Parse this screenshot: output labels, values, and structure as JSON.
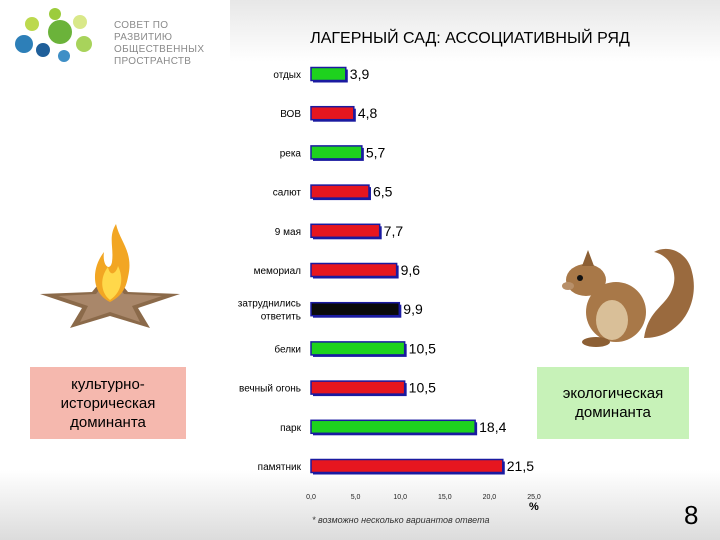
{
  "logo": {
    "lines": [
      "СОВЕТ ПО РАЗВИТИЮ",
      "ОБЩЕСТВЕННЫХ",
      "ПРОСТРАНСТВ"
    ]
  },
  "title": "ЛАГЕРНЫЙ САД: АССОЦИАТИВНЫЙ РЯД",
  "chart_data": {
    "type": "bar",
    "orientation": "horizontal",
    "categories": [
      "отдых",
      "ВОВ",
      "река",
      "салют",
      "9 мая",
      "мемориал",
      "затруднились ответить",
      "белки",
      "вечный огонь",
      "парк",
      "памятник"
    ],
    "category_lines": [
      [
        "отдых"
      ],
      [
        "ВОВ"
      ],
      [
        "река"
      ],
      [
        "салют"
      ],
      [
        "9 мая"
      ],
      [
        "мемориал"
      ],
      [
        "затруднились",
        "ответить"
      ],
      [
        "белки"
      ],
      [
        "вечный огонь"
      ],
      [
        "парк"
      ],
      [
        "памятник"
      ]
    ],
    "values": [
      3.9,
      4.8,
      5.7,
      6.5,
      7.7,
      9.6,
      9.9,
      10.5,
      10.5,
      18.4,
      21.5
    ],
    "value_labels": [
      "3,9",
      "4,8",
      "5,7",
      "6,5",
      "7,7",
      "9,6",
      "9,9",
      "10,5",
      "10,5",
      "18,4",
      "21,5"
    ],
    "colors": [
      "#1ed21e",
      "#e6161f",
      "#1ed21e",
      "#e6161f",
      "#e6161f",
      "#e6161f",
      "#0a0a0a",
      "#1ed21e",
      "#e6161f",
      "#1ed21e",
      "#e6161f"
    ],
    "xticks": [
      "0,0",
      "5,0",
      "10,0",
      "15,0",
      "20,0",
      "25,0"
    ],
    "xlim": [
      0,
      25
    ],
    "xlabel": "%",
    "grid": false
  },
  "footnote": "* возможно несколько вариантов ответа",
  "boxes": {
    "left": "культурно-историческая доминанта",
    "right": "экологическая доминанта"
  },
  "page_number": "8",
  "illustrations": [
    "eternal-flame-star",
    "squirrel"
  ]
}
